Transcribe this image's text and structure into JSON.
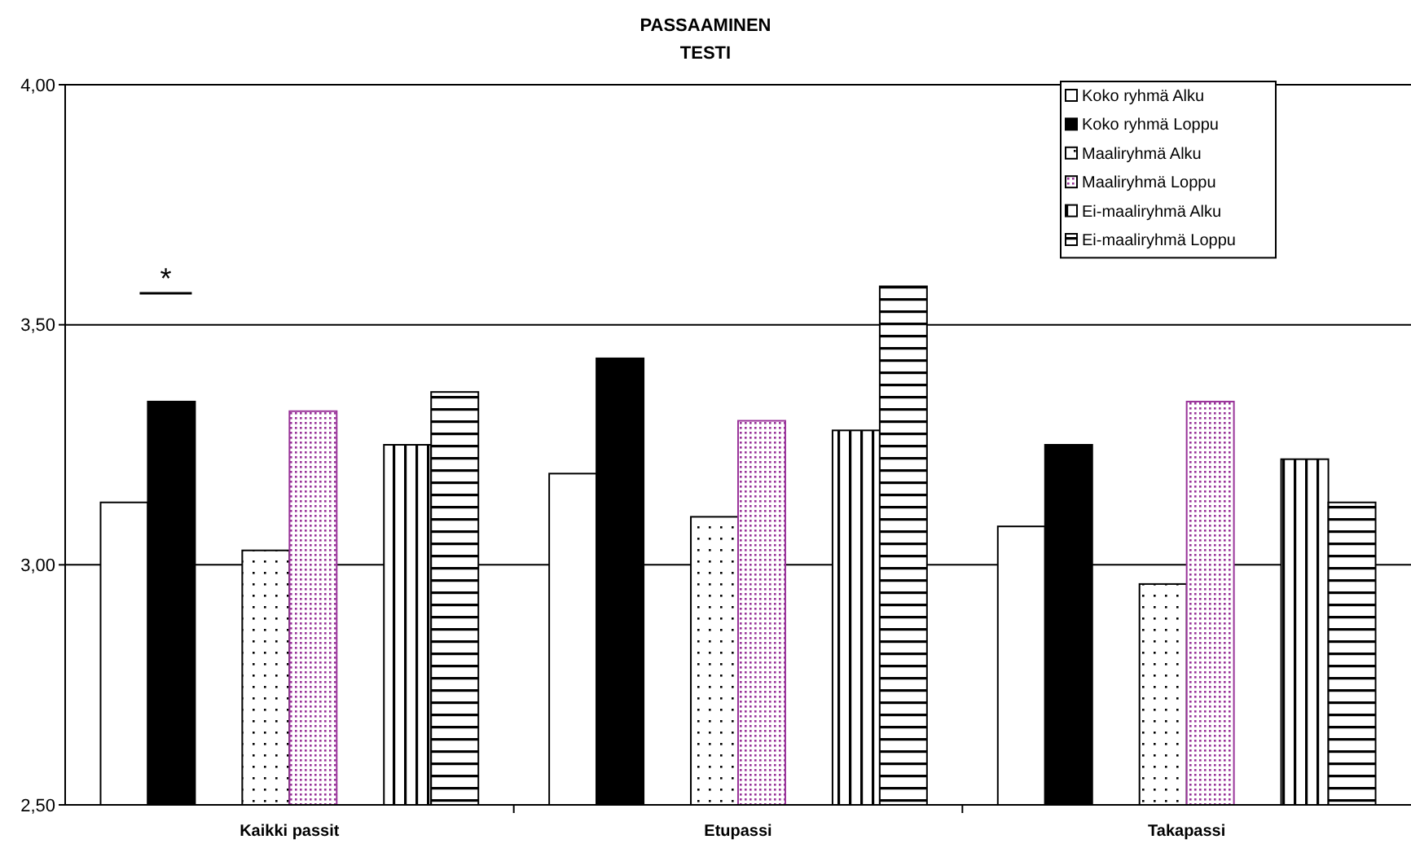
{
  "chart_data": {
    "type": "bar",
    "title": "PASSAAMINEN\nTESTI",
    "categories": [
      "Kaikki passit",
      "Etupassi",
      "Takapassi"
    ],
    "series": [
      {
        "name": "Koko ryhmä  Alku",
        "color": "#ffffff",
        "values": [
          3.13,
          3.19,
          3.08
        ]
      },
      {
        "name": "Koko ryhmä  Loppu",
        "color": "#000000",
        "values": [
          3.34,
          3.43,
          3.25
        ]
      },
      {
        "name": "Maaliryhmä Alku",
        "color": "#000000",
        "values": [
          3.03,
          3.1,
          2.96
        ]
      },
      {
        "name": "Maaliryhmä Loppu",
        "color": "#993399",
        "values": [
          3.32,
          3.3,
          3.34
        ]
      },
      {
        "name": "Ei-maaliryhmä Alku",
        "color": "#000000",
        "values": [
          3.25,
          3.28,
          3.22
        ]
      },
      {
        "name": "Ei-maaliryhmä Loppu",
        "color": "#000000",
        "values": [
          3.36,
          3.58,
          3.13
        ]
      }
    ],
    "ylim": [
      2.5,
      4
    ],
    "yticks": [
      {
        "value": 2.5,
        "label": "2,50"
      },
      {
        "value": 3,
        "label": "3,00"
      },
      {
        "value": 3.5,
        "label": "3,50"
      },
      {
        "value": 4,
        "label": "4,00"
      }
    ],
    "grid": "y",
    "legend": "top right",
    "annotations": [
      "*"
    ]
  }
}
